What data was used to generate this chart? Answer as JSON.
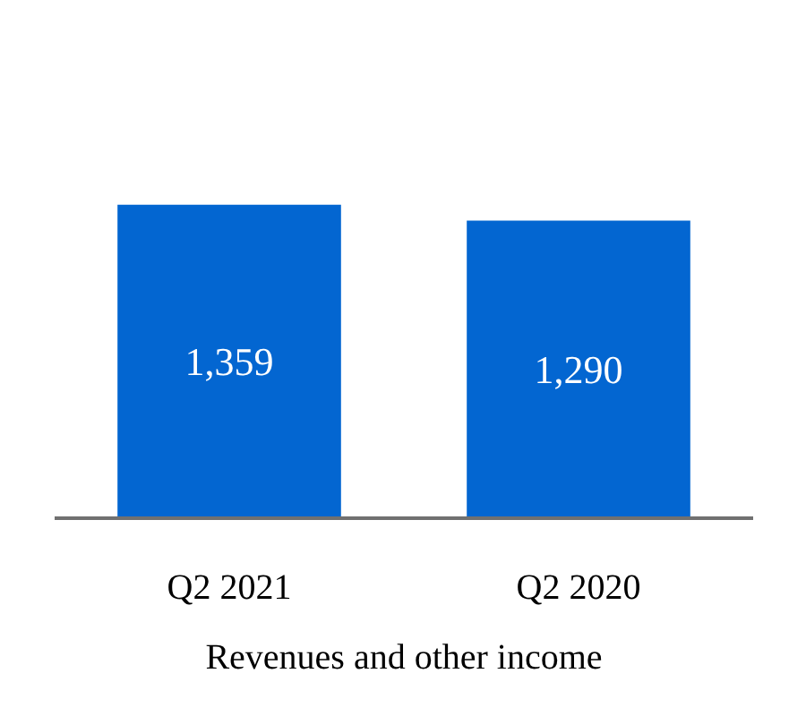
{
  "chart_data": {
    "type": "bar",
    "categories": [
      "Q2 2021",
      "Q2 2020"
    ],
    "values": [
      1359,
      1290
    ],
    "color": "#0366d1",
    "xlabel": "Revenues and other income",
    "data_labels": true,
    "value_labels": [
      "1,359",
      "1,290"
    ],
    "grid": false,
    "tick_labels": "x"
  }
}
